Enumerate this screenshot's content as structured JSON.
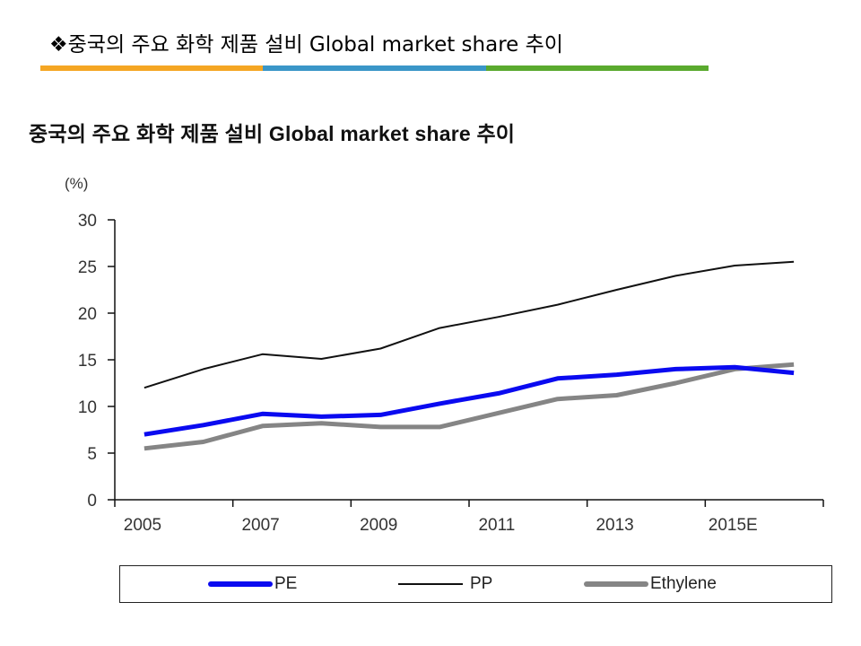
{
  "slide": {
    "title": "❖중국의 주요 화학 제품 설비 Global market share 추이",
    "accent_bar_colors": [
      "#f5a623",
      "#3a96c8",
      "#5aaa2e"
    ]
  },
  "chart_data": {
    "type": "line",
    "title": "중국의 주요 화학 제품 설비 Global market share 추이",
    "ylabel": "(%)",
    "xlabel": "",
    "ylim": [
      0,
      30
    ],
    "yticks": [
      "0",
      "5",
      "10",
      "15",
      "20",
      "25",
      "30"
    ],
    "ytick_values": [
      0,
      5,
      10,
      15,
      20,
      25,
      30
    ],
    "x": [
      2005,
      2006,
      2007,
      2008,
      2009,
      2010,
      2011,
      2012,
      2013,
      2014,
      2015,
      2016
    ],
    "xtick_labels": [
      "2005",
      "2007",
      "2009",
      "2011",
      "2013",
      "2015E"
    ],
    "xtick_positions": [
      2005,
      2007,
      2009,
      2011,
      2013,
      2015
    ],
    "grid": false,
    "legend_position": "bottom",
    "series": [
      {
        "name": "PE",
        "color": "#0a0af0",
        "width": "thick",
        "values": [
          7.0,
          8.0,
          9.2,
          8.9,
          9.1,
          10.3,
          11.4,
          13.0,
          13.4,
          14.0,
          14.2,
          13.6
        ]
      },
      {
        "name": "PP",
        "color": "#111111",
        "width": "thin",
        "values": [
          12.0,
          14.0,
          15.6,
          15.1,
          16.2,
          18.4,
          19.6,
          20.9,
          22.5,
          24.0,
          25.1,
          25.5
        ]
      },
      {
        "name": "Ethylene",
        "color": "#858585",
        "width": "thick",
        "values": [
          5.5,
          6.2,
          7.9,
          8.2,
          7.8,
          7.8,
          9.3,
          10.8,
          11.2,
          12.5,
          14.0,
          14.5
        ]
      }
    ]
  }
}
